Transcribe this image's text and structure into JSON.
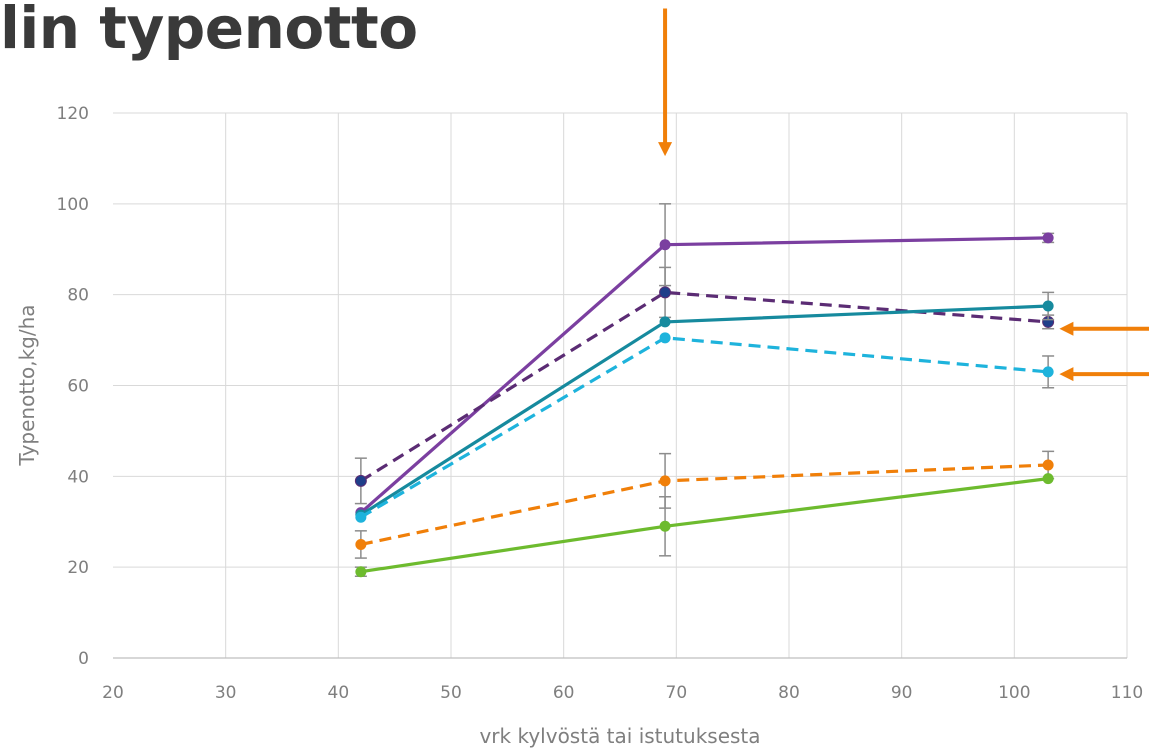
{
  "header": {
    "title": "lin typenotto"
  },
  "chart_data": {
    "type": "line",
    "title": "",
    "xlabel": "vrk kylvöstä tai istutuksesta",
    "ylabel": "Typenotto,kg/ha",
    "xlim": [
      20,
      110
    ],
    "ylim": [
      0,
      120
    ],
    "xticks": [
      20,
      30,
      40,
      50,
      60,
      70,
      80,
      90,
      100,
      110
    ],
    "yticks": [
      0,
      20,
      40,
      60,
      80,
      100,
      120
    ],
    "grid": true,
    "legend": "none",
    "series": [
      {
        "color": "#7b3fa0",
        "dash": "solid",
        "x": [
          42,
          69,
          103
        ],
        "y": [
          32,
          91,
          92.5
        ],
        "err": [
          0,
          9,
          1
        ]
      },
      {
        "color": "#5b2c74",
        "dash": "dashed",
        "marker": "#1f3f8a",
        "x": [
          42,
          69,
          103
        ],
        "y": [
          39,
          80.5,
          74
        ],
        "err": [
          5,
          5.5,
          1.5
        ]
      },
      {
        "color": "#168a9e",
        "dash": "solid",
        "x": [
          42,
          69,
          103
        ],
        "y": [
          31.5,
          74,
          77.5
        ],
        "err": [
          0,
          0,
          3
        ]
      },
      {
        "color": "#1eb3dc",
        "dash": "dashed",
        "x": [
          42,
          69,
          103
        ],
        "y": [
          31,
          70.5,
          63
        ],
        "err": [
          0,
          0,
          3.5
        ]
      },
      {
        "color": "#f07f09",
        "dash": "dashed",
        "x": [
          42,
          69,
          103
        ],
        "y": [
          25,
          39,
          42.5
        ],
        "err": [
          3,
          6,
          3
        ]
      },
      {
        "color": "#6dbb2e",
        "dash": "solid",
        "x": [
          42,
          69,
          103
        ],
        "y": [
          19,
          29,
          39.5
        ],
        "err": [
          1,
          6.5,
          0
        ]
      }
    ],
    "annotations": [
      {
        "type": "arrow-down",
        "color": "#f07f09",
        "x": 69,
        "y_from": 143,
        "y_to": 110.5
      },
      {
        "type": "arrow-left",
        "color": "#f07f09",
        "x_from": 113,
        "x_to": 104,
        "y": 72.5
      },
      {
        "type": "arrow-left",
        "color": "#f07f09",
        "x_from": 113,
        "x_to": 104,
        "y": 62.5
      }
    ]
  }
}
